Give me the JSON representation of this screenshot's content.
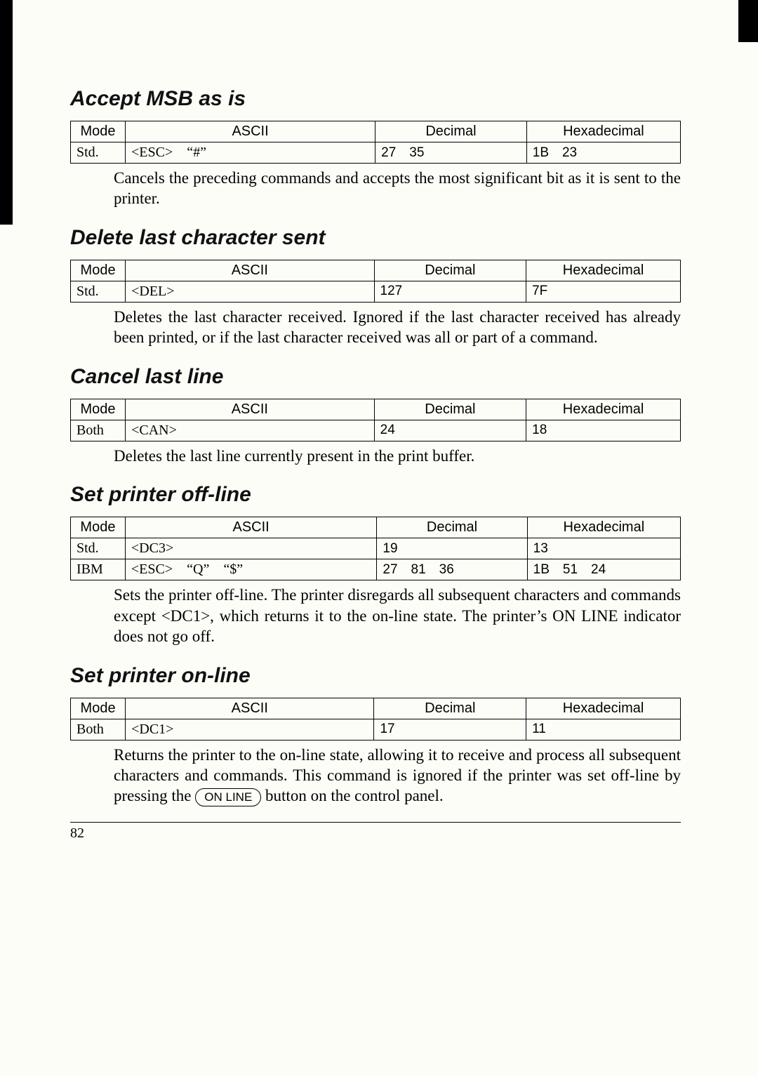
{
  "sections": [
    {
      "title": "Accept MSB as is",
      "headers": [
        "Mode",
        "ASCII",
        "Decimal",
        "Hexadecimal"
      ],
      "rows": [
        {
          "mode": "Std.",
          "ascii": "<ESC> “#”",
          "decimal": "27 35",
          "hex": "1B 23"
        }
      ],
      "desc": "Cancels the preceding commands and accepts the most significant bit as it is sent to the printer."
    },
    {
      "title": "Delete last character sent",
      "headers": [
        "Mode",
        "ASCII",
        "Decimal",
        "Hexadecimal"
      ],
      "rows": [
        {
          "mode": "Std.",
          "ascii": "<DEL>",
          "decimal": "127",
          "hex": "7F"
        }
      ],
      "desc": "Deletes the last character received. Ignored if the last character received has already been printed, or if the last character received was all or part of a command."
    },
    {
      "title": "Cancel last line",
      "headers": [
        "Mode",
        "ASCII",
        "Decimal",
        "Hexadecimal"
      ],
      "rows": [
        {
          "mode": "Both",
          "ascii": "<CAN>",
          "decimal": "24",
          "hex": "18"
        }
      ],
      "desc": "Deletes the last line currently present in the print buffer."
    },
    {
      "title": "Set printer off-line",
      "headers": [
        "Mode",
        "ASCII",
        "Decimal",
        "Hexadecimal"
      ],
      "rows": [
        {
          "mode": "Std.",
          "ascii": "<DC3>",
          "decimal": "19",
          "hex": "13"
        },
        {
          "mode": "IBM",
          "ascii": "<ESC> “Q” “$”",
          "decimal": "27 81 36",
          "hex": "1B 51 24"
        }
      ],
      "desc": "Sets the printer off-line. The printer disregards all subsequent characters and commands except <DC1>, which returns it to the on-line state. The printer’s ON LINE indicator does not go off."
    },
    {
      "title": "Set printer on-line",
      "headers": [
        "Mode",
        "ASCII",
        "Decimal",
        "Hexadecimal"
      ],
      "rows": [
        {
          "mode": "Both",
          "ascii": "<DC1>",
          "decimal": "17",
          "hex": "11"
        }
      ],
      "desc_parts": {
        "pre": "Returns the printer to the on-line state, allowing it to receive and process all subsequent characters and commands. This command is ignored if the printer was set off-line by pressing the ",
        "btn": "ON LINE",
        "post": " button on the control panel."
      }
    }
  ],
  "page_number": "82",
  "colors": {
    "background": "#fdfdf8",
    "text": "#111111",
    "border": "#000000"
  },
  "typography": {
    "title_fontsize": 30,
    "body_fontsize": 23,
    "table_fontsize": 20
  }
}
